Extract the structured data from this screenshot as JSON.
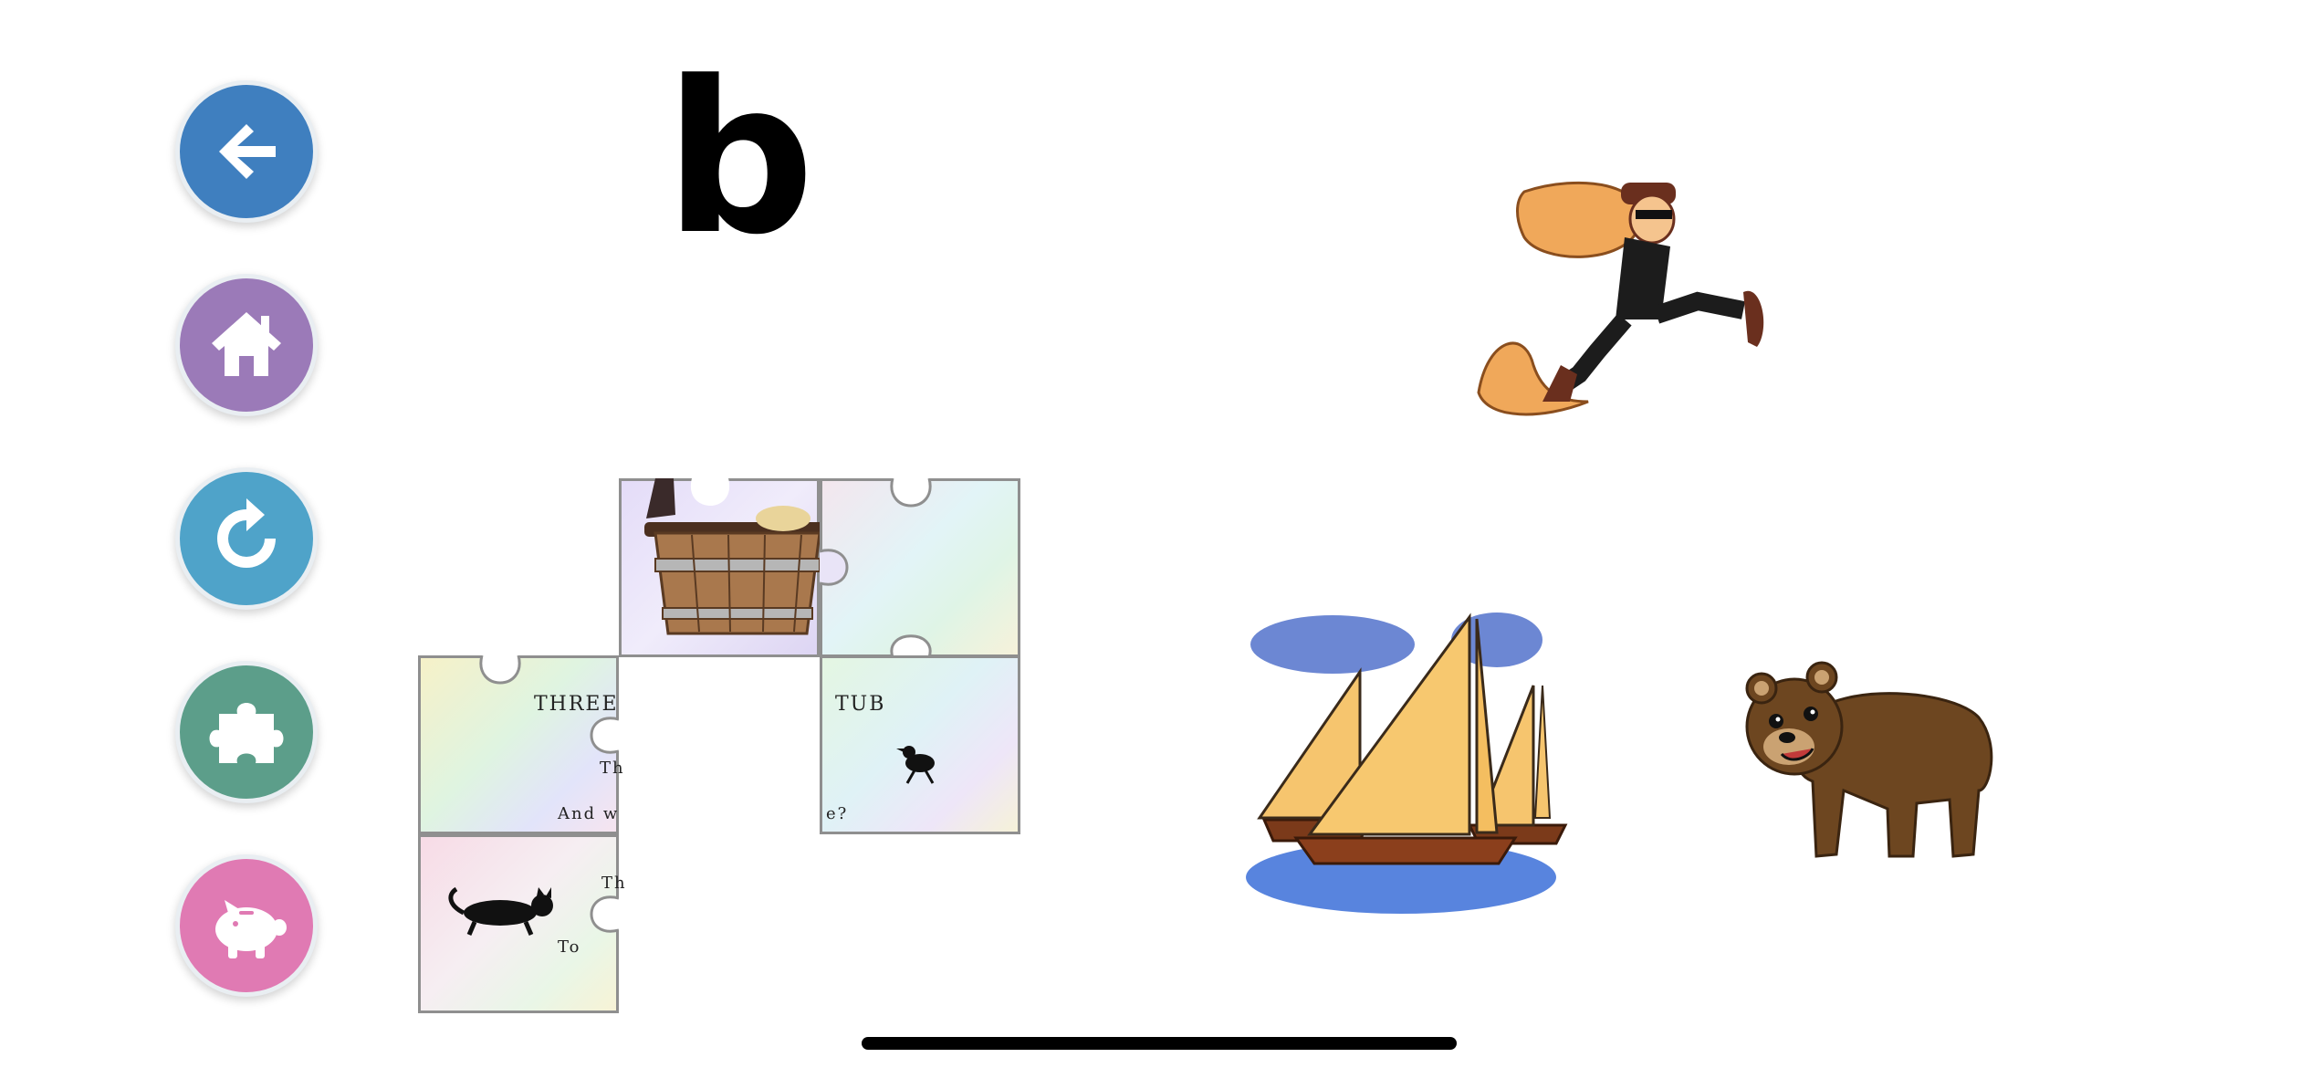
{
  "nav": {
    "buttons": [
      {
        "name": "back",
        "icon": "back-arrow-icon",
        "color": "#3f7fbf"
      },
      {
        "name": "home",
        "icon": "home-icon",
        "color": "#9b7ab8"
      },
      {
        "name": "replay",
        "icon": "replay-icon",
        "color": "#4fa3c9"
      },
      {
        "name": "puzzle",
        "icon": "puzzle-piece-icon",
        "color": "#5c9e8a"
      },
      {
        "name": "piggy-bank",
        "icon": "piggy-bank-icon",
        "color": "#e07ab3"
      }
    ]
  },
  "target_letter": "b",
  "puzzle": {
    "text_pieces": {
      "title_left": "THREE",
      "title_right": "TUB",
      "line_a": "Th",
      "line_b": "And w",
      "line_b_end": "e?",
      "line_c": "Th",
      "line_d": "To"
    }
  },
  "choices": [
    {
      "name": "burglar",
      "icon": "burglar-icon"
    },
    {
      "name": "boats",
      "icon": "sailboats-icon"
    },
    {
      "name": "bear",
      "icon": "bear-icon"
    }
  ]
}
